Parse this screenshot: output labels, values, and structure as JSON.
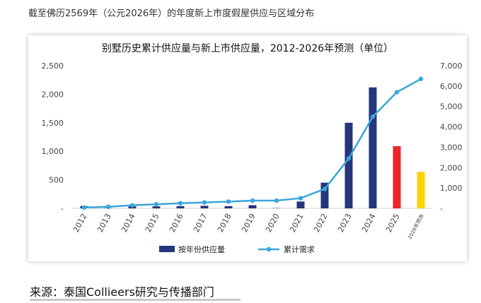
{
  "page_heading": "截至佛历2569年（公元2026年）的年度新上市度假屋供应与区域分布",
  "source_note": "来源：泰国Collieers研究与传播部门",
  "colors": {
    "bar_default": "#24367e",
    "bar_2025": "#e8262b",
    "bar_2026": "#ffd400",
    "line": "#3aa6d9"
  },
  "chart_data": {
    "type": "bar",
    "title": "别墅历史累计供应量与新上市供应量，2012-2026年预测（单位）",
    "categories": [
      "2012",
      "2013",
      "2014",
      "2015",
      "2016",
      "2017",
      "2018",
      "2019",
      "2020",
      "2021",
      "2022",
      "2023",
      "2024",
      "2025",
      "2026年预测"
    ],
    "series": [
      {
        "name": "按年份供应量",
        "axis": "left",
        "type": "bar",
        "values": [
          40,
          5,
          35,
          35,
          40,
          45,
          40,
          55,
          5,
          120,
          450,
          1500,
          2120,
          1090,
          640
        ]
      },
      {
        "name": "累计需求",
        "axis": "right",
        "type": "line",
        "values": [
          40,
          80,
          150,
          200,
          250,
          290,
          330,
          380,
          380,
          500,
          950,
          2450,
          4500,
          5700,
          6350
        ]
      }
    ],
    "y_left": {
      "ylim": [
        0,
        2500
      ],
      "ticks": [
        "-",
        "500",
        "1,000",
        "1,500",
        "2,000",
        "2,500"
      ]
    },
    "y_right": {
      "ylim": [
        0,
        7000
      ],
      "ticks": [
        "-",
        "1,000",
        "2,000",
        "3,000",
        "4,000",
        "5,000",
        "6,000",
        "7,000"
      ]
    },
    "grid": false,
    "legend_position": "bottom-center"
  }
}
